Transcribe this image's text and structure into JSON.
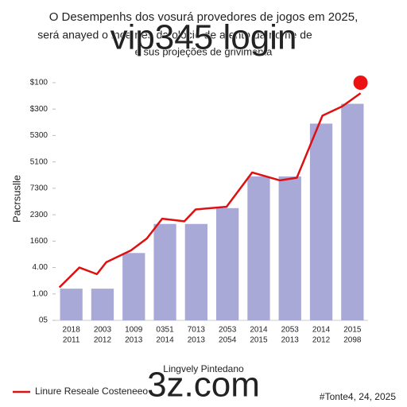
{
  "chart_data": {
    "type": "bar-line",
    "title": [
      "O Desempenhs dos vosurá provedores de jogos em 2025,",
      "será anayed o ince rtes da olocié de a ento da nome de",
      "e sus projeções de grivimenta"
    ],
    "overlay_texts": [
      "vip345 login",
      "3z.com"
    ],
    "ylabel": "Pacrsuslle",
    "footer": "#Tonte4, 24, 2025",
    "categories": [
      [
        "2018",
        "2011"
      ],
      [
        "2003",
        "2012"
      ],
      [
        "1009",
        "2013"
      ],
      [
        "0351",
        "2014"
      ],
      [
        "7013",
        "2013"
      ],
      [
        "2053",
        "2054"
      ],
      [
        "2014",
        "2015"
      ],
      [
        "2053",
        "2013"
      ],
      [
        "2014",
        "2012"
      ],
      [
        "2015",
        "2098"
      ]
    ],
    "ylim": [
      0,
      9
    ],
    "yticks": [
      {
        "value": 0,
        "label": "05"
      },
      {
        "value": 1,
        "label": "1.00"
      },
      {
        "value": 2,
        "label": "4.00"
      },
      {
        "value": 3,
        "label": "1600"
      },
      {
        "value": 4,
        "label": "2300"
      },
      {
        "value": 5,
        "label": "7300"
      },
      {
        "value": 6,
        "label": "5100"
      },
      {
        "value": 7,
        "label": "5300"
      },
      {
        "value": 8,
        "label": "$300"
      },
      {
        "value": 9,
        "label": "$100"
      }
    ],
    "xlim": [
      -0.5,
      9.5
    ],
    "series": [
      {
        "name": "Lingvely Pintedano",
        "kind": "bar",
        "color": "#a9a9d8",
        "values": [
          1.2,
          1.2,
          2.55,
          3.65,
          3.65,
          4.25,
          5.45,
          5.45,
          7.45,
          8.2
        ]
      },
      {
        "name": "Linure Reseale Costeneeo",
        "kind": "line",
        "color": "#dd1111",
        "x": [
          -0.38,
          0.26,
          0.82,
          1.12,
          1.91,
          2.42,
          2.91,
          3.62,
          3.98,
          4.97,
          5.79,
          6.68,
          7.22,
          8.04,
          8.67,
          9.26
        ],
        "values": [
          1.25,
          2.0,
          1.75,
          2.2,
          2.65,
          3.1,
          3.85,
          3.75,
          4.2,
          4.3,
          5.6,
          5.3,
          5.4,
          7.75,
          8.1,
          8.6
        ]
      }
    ],
    "highlight": {
      "x": 9.26,
      "value": 9.0,
      "color": "#ee1111"
    }
  }
}
